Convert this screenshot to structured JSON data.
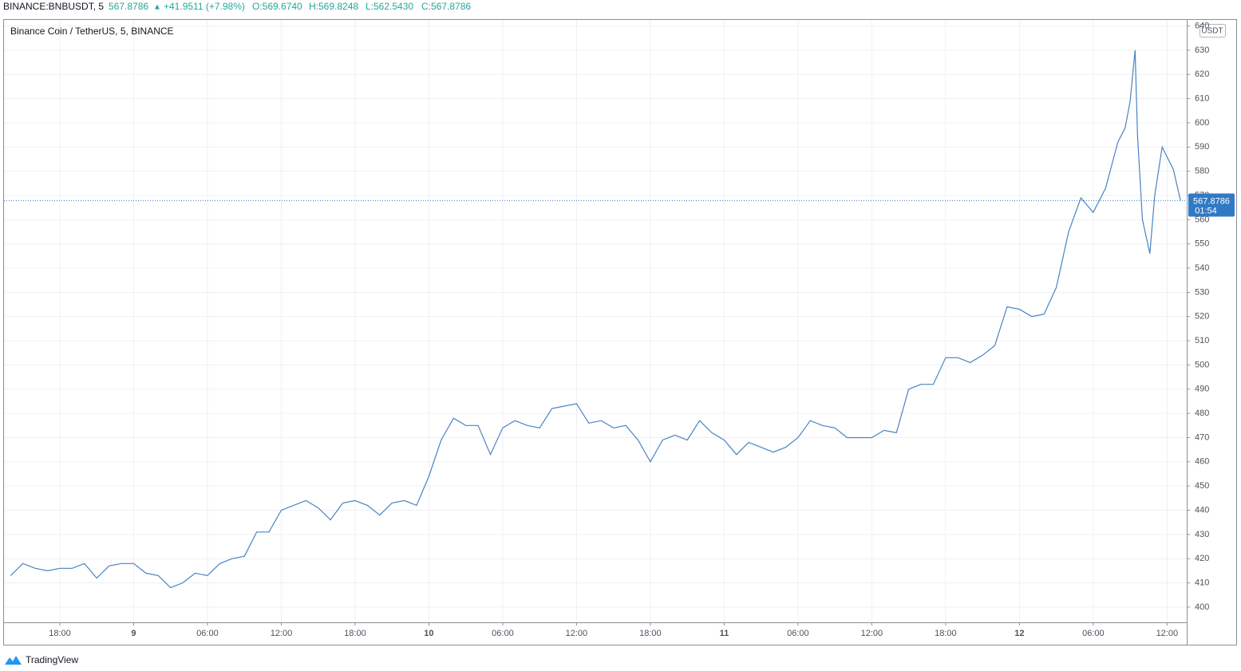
{
  "header": {
    "symbol": "BINANCE:BNBUSDT, 5",
    "change": "+41.9511 (+7.98%)",
    "ohlc": [
      "O:569.6740",
      "H:569.8248",
      "L:562.5430",
      "C:567.8786"
    ],
    "countdown": "01:54",
    "brand": "TradingView"
  },
  "chart_data": {
    "type": "line",
    "title": "Binance Coin / TetherUS, 5, BINANCE",
    "y_unit": "USDT",
    "series": [
      {
        "name": "BNBUSDT",
        "color": "#4a83c4",
        "x": [
          14,
          15,
          16,
          17,
          18,
          19,
          20,
          21,
          22,
          23,
          24,
          25,
          26,
          27,
          28,
          29,
          30,
          31,
          32,
          33,
          34,
          35,
          36,
          37,
          38,
          39,
          40,
          41,
          42,
          43,
          44,
          45,
          46,
          47,
          48,
          49,
          50,
          51,
          52,
          53,
          54,
          55,
          56,
          57,
          58,
          59,
          60,
          61,
          62,
          63,
          64,
          65,
          66,
          67,
          68,
          69,
          70,
          71,
          72,
          73,
          74,
          75,
          76,
          77,
          78,
          79,
          80,
          81,
          82,
          83,
          84,
          85,
          86,
          87,
          88,
          89,
          90,
          91,
          92,
          93,
          94,
          95,
          96,
          97,
          98,
          99,
          100,
          101,
          102,
          103,
          104,
          104.6,
          105,
          105.4,
          105.6,
          106,
          106.6,
          107,
          107.6,
          108,
          108.5,
          109.1
        ],
        "values": [
          413,
          418,
          416,
          415,
          416,
          416,
          418,
          412,
          417,
          418,
          418,
          414,
          413,
          408,
          410,
          414,
          413,
          418,
          420,
          421,
          431,
          431,
          440,
          442,
          444,
          441,
          436,
          443,
          444,
          442,
          438,
          443,
          444,
          442,
          454,
          469,
          478,
          475,
          475,
          463,
          474,
          477,
          475,
          474,
          482,
          483,
          484,
          476,
          477,
          474,
          475,
          469,
          460,
          469,
          471,
          469,
          477,
          472,
          469,
          463,
          468,
          466,
          464,
          466,
          470,
          477,
          475,
          474,
          470,
          470,
          470,
          473,
          472,
          490,
          492,
          492,
          503,
          503,
          501,
          504,
          508,
          524,
          523,
          520,
          521,
          532,
          555,
          569,
          563,
          573,
          592,
          598,
          609,
          630,
          595,
          560,
          546,
          570,
          590,
          586,
          581,
          567.8786
        ]
      }
    ],
    "xlim": [
      13.46,
      109.6
    ],
    "xticks": [
      {
        "value": 18,
        "label": "18:00"
      },
      {
        "value": 24,
        "label": "9"
      },
      {
        "value": 30,
        "label": "06:00"
      },
      {
        "value": 36,
        "label": "12:00"
      },
      {
        "value": 42,
        "label": "18:00"
      },
      {
        "value": 48,
        "label": "10"
      },
      {
        "value": 54,
        "label": "06:00"
      },
      {
        "value": 60,
        "label": "12:00"
      },
      {
        "value": 66,
        "label": "18:00"
      },
      {
        "value": 72,
        "label": "11"
      },
      {
        "value": 78,
        "label": "06:00"
      },
      {
        "value": 84,
        "label": "12:00"
      },
      {
        "value": 90,
        "label": "18:00"
      },
      {
        "value": 96,
        "label": "12"
      },
      {
        "value": 102,
        "label": "06:00"
      },
      {
        "value": 108,
        "label": "12:00"
      }
    ],
    "ylim": [
      393.7,
      642.5
    ],
    "yticks": [
      400,
      410,
      420,
      430,
      440,
      450,
      460,
      470,
      480,
      490,
      500,
      510,
      520,
      530,
      540,
      550,
      560,
      570,
      580,
      590,
      600,
      610,
      620,
      630,
      640
    ],
    "grid": true
  }
}
